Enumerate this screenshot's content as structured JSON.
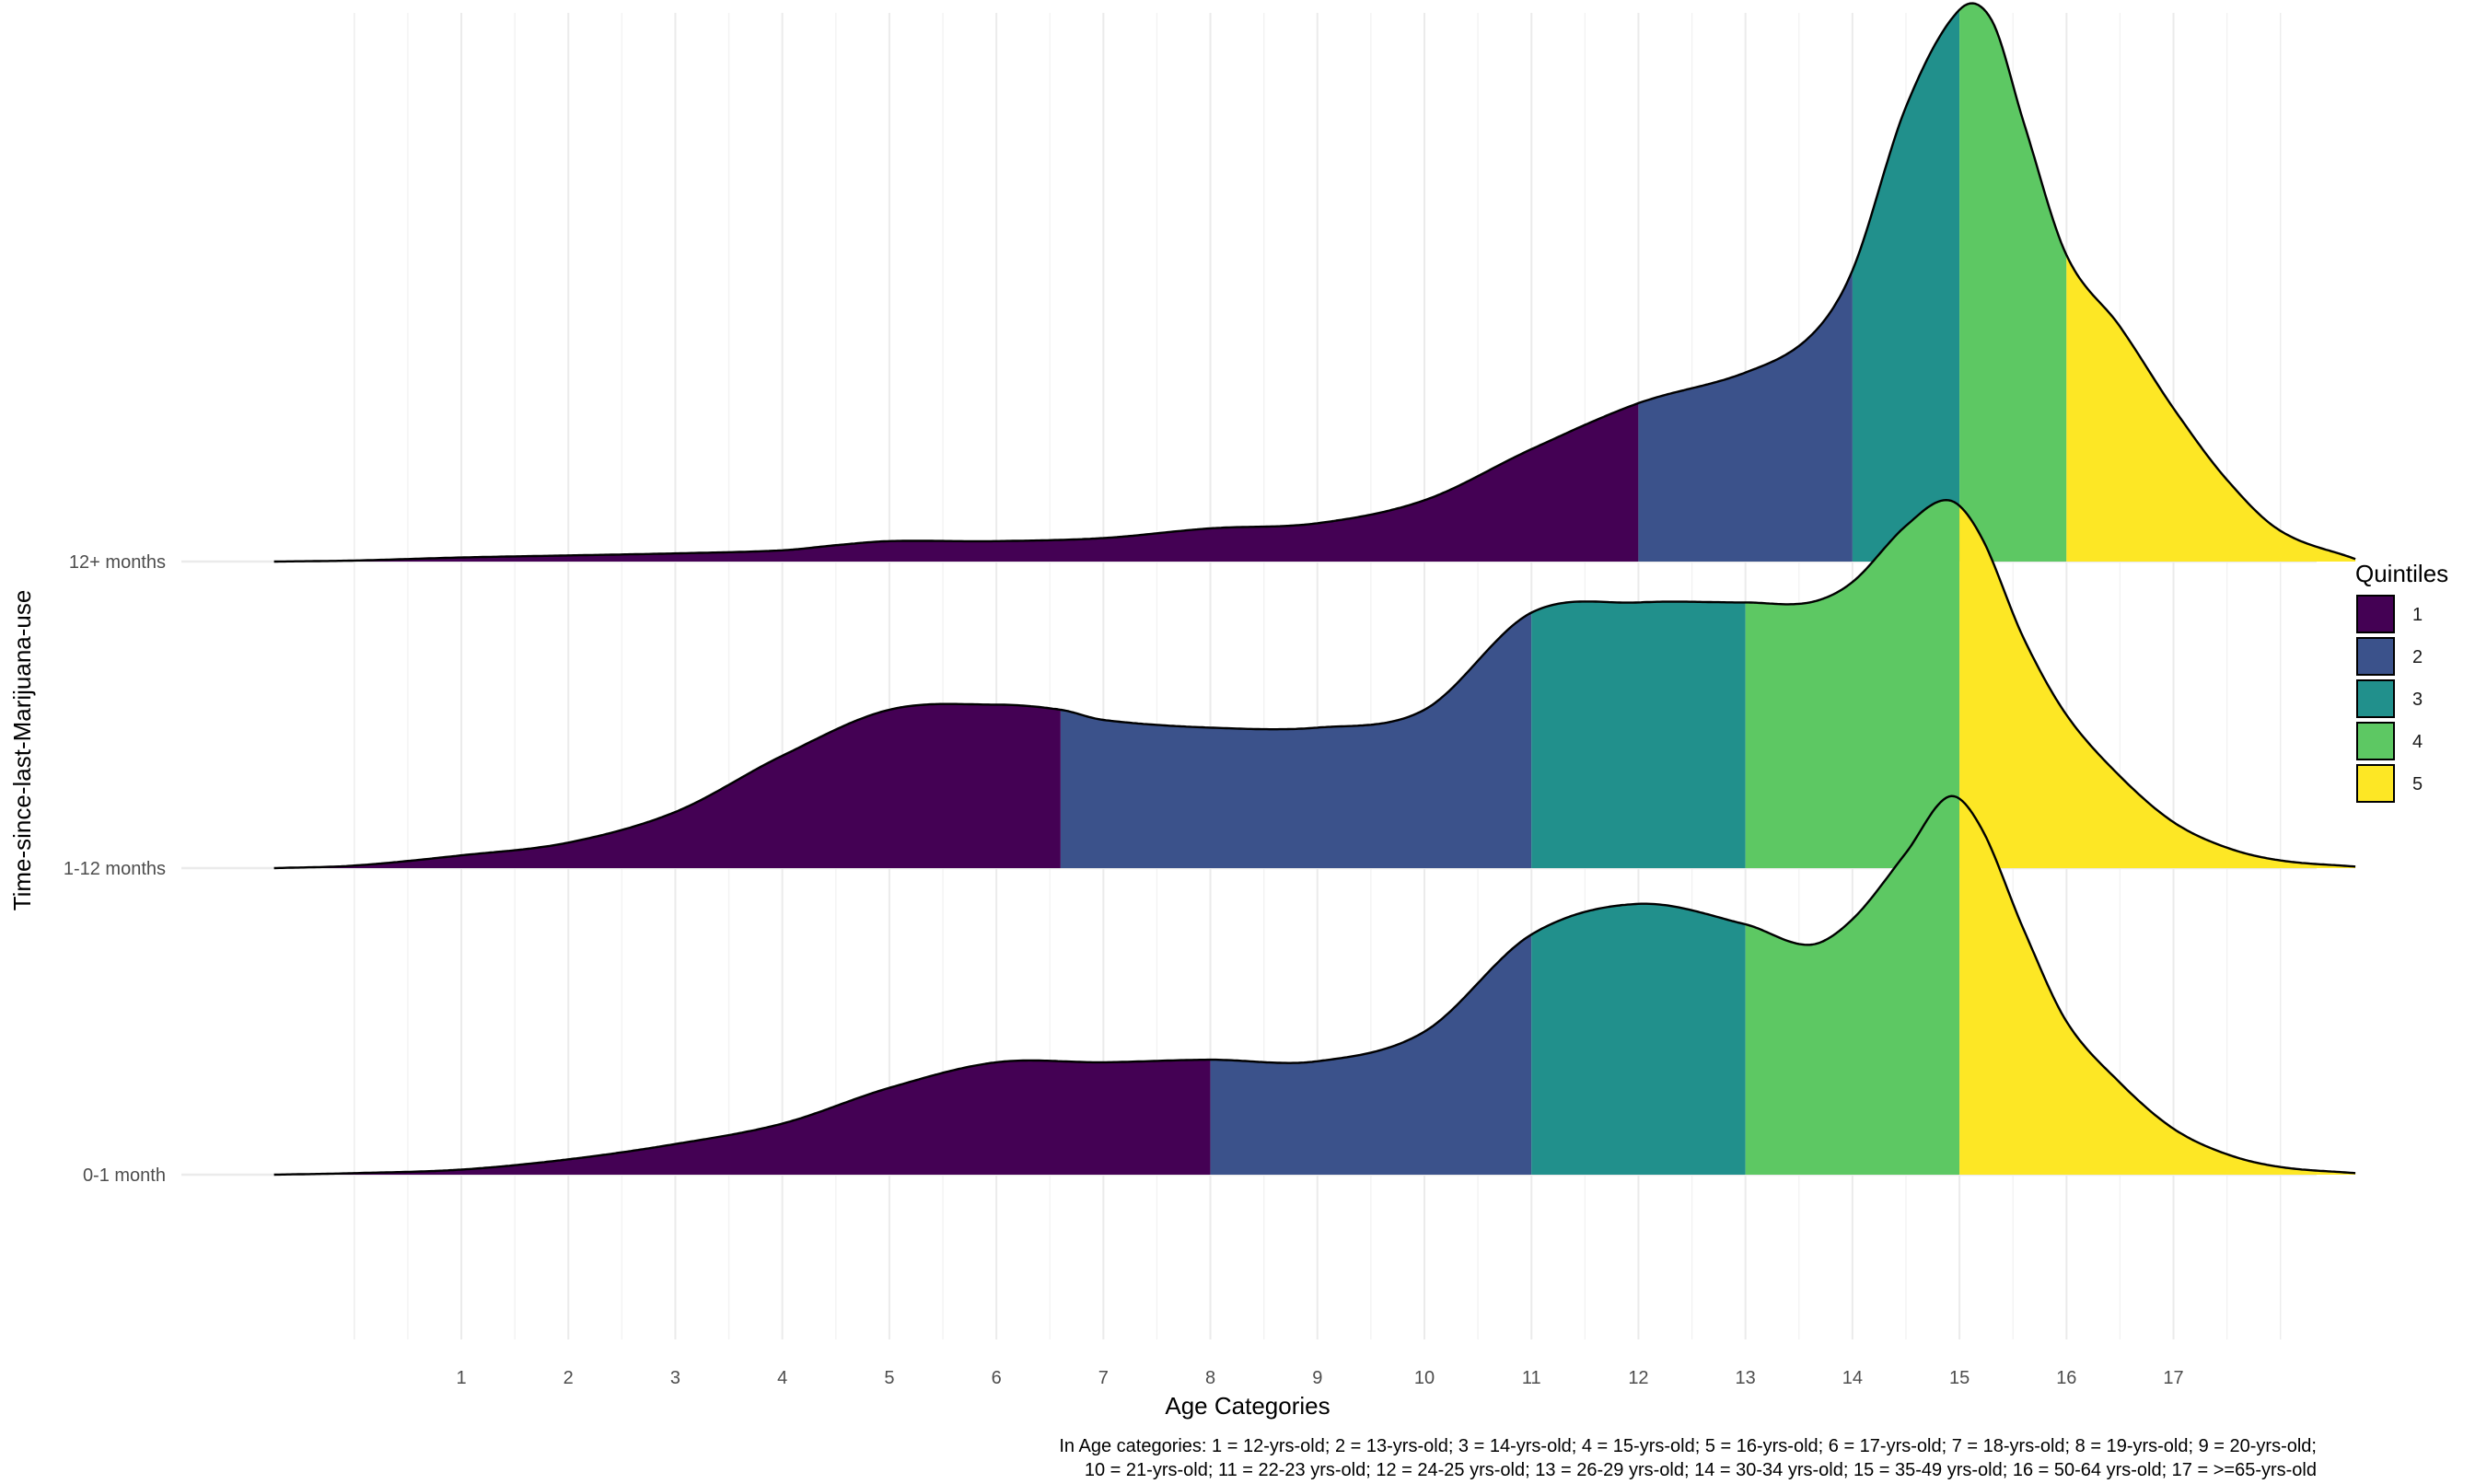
{
  "chart_data": {
    "type": "ridgeline",
    "xlabel": "Age Categories",
    "ylabel": "Time-since-last-Marijuana-use",
    "x_ticks": [
      1,
      2,
      3,
      4,
      5,
      6,
      7,
      8,
      9,
      10,
      11,
      12,
      13,
      14,
      15,
      16,
      17
    ],
    "xlim": [
      -0.05,
      18.2
    ],
    "grid": true,
    "legend": {
      "title": "Quintiles",
      "placement": "right",
      "entries": [
        {
          "label": "1",
          "color": "#440154"
        },
        {
          "label": "2",
          "color": "#3b528b"
        },
        {
          "label": "3",
          "color": "#21908c"
        },
        {
          "label": "4",
          "color": "#5dc863"
        },
        {
          "label": "5",
          "color": "#fde725"
        }
      ]
    },
    "caption": [
      "In Age categories: 1 = 12-yrs-old; 2 = 13-yrs-old; 3 = 14-yrs-old; 4 = 15-yrs-old; 5 = 16-yrs-old; 6 = 17-yrs-old; 7 = 18-yrs-old; 8 = 19-yrs-old; 9 = 20-yrs-old;",
      "10 = 21-yrs-old; 11 = 22-23 yrs-old; 12 = 24-25 yrs-old; 13 = 26-29 yrs-old; 14 = 30-34 yrs-old; 15 = 35-49 yrs-old; 16 = 50-64 yrs-old; 17 = >=65-yrs-old"
    ],
    "series": [
      {
        "name": "0-1 month",
        "quintile_breaks": [
          8,
          11,
          13,
          15
        ],
        "density": [
          [
            -0.75,
            0
          ],
          [
            0,
            0.003
          ],
          [
            1,
            0.01
          ],
          [
            2,
            0.03
          ],
          [
            3,
            0.06
          ],
          [
            4,
            0.1
          ],
          [
            5,
            0.17
          ],
          [
            6,
            0.22
          ],
          [
            7,
            0.22
          ],
          [
            8,
            0.225
          ],
          [
            9,
            0.222
          ],
          [
            10,
            0.28
          ],
          [
            11,
            0.47
          ],
          [
            12,
            0.53
          ],
          [
            13,
            0.49
          ],
          [
            13.6,
            0.45
          ],
          [
            14,
            0.5
          ],
          [
            14.5,
            0.63
          ],
          [
            14.9,
            0.74
          ],
          [
            15.2,
            0.68
          ],
          [
            15.6,
            0.48
          ],
          [
            16,
            0.3
          ],
          [
            16.5,
            0.18
          ],
          [
            17,
            0.09
          ],
          [
            17.5,
            0.04
          ],
          [
            18,
            0.015
          ],
          [
            18.7,
            0.003
          ]
        ]
      },
      {
        "name": "1-12 months",
        "quintile_breaks": [
          6.6,
          11,
          13,
          15
        ],
        "density": [
          [
            -0.75,
            0
          ],
          [
            0,
            0.005
          ],
          [
            1,
            0.025
          ],
          [
            2,
            0.05
          ],
          [
            3,
            0.11
          ],
          [
            4,
            0.22
          ],
          [
            5,
            0.31
          ],
          [
            6,
            0.32
          ],
          [
            6.6,
            0.31
          ],
          [
            7,
            0.29
          ],
          [
            8,
            0.275
          ],
          [
            9,
            0.275
          ],
          [
            10,
            0.31
          ],
          [
            11,
            0.5
          ],
          [
            12,
            0.52
          ],
          [
            13,
            0.52
          ],
          [
            13.6,
            0.52
          ],
          [
            14,
            0.56
          ],
          [
            14.5,
            0.67
          ],
          [
            14.9,
            0.72
          ],
          [
            15.2,
            0.65
          ],
          [
            15.6,
            0.45
          ],
          [
            16,
            0.3
          ],
          [
            16.5,
            0.18
          ],
          [
            17,
            0.09
          ],
          [
            17.5,
            0.04
          ],
          [
            18,
            0.015
          ],
          [
            18.7,
            0.003
          ]
        ]
      },
      {
        "name": "12+ months",
        "quintile_breaks": [
          12,
          14,
          15,
          16
        ],
        "density": [
          [
            -0.75,
            0
          ],
          [
            0,
            0.002
          ],
          [
            1,
            0.008
          ],
          [
            2,
            0.012
          ],
          [
            3,
            0.016
          ],
          [
            4,
            0.022
          ],
          [
            4.5,
            0.032
          ],
          [
            5,
            0.04
          ],
          [
            6,
            0.04
          ],
          [
            7,
            0.046
          ],
          [
            8,
            0.065
          ],
          [
            9,
            0.075
          ],
          [
            10,
            0.12
          ],
          [
            11,
            0.22
          ],
          [
            12,
            0.31
          ],
          [
            13,
            0.37
          ],
          [
            13.6,
            0.44
          ],
          [
            14,
            0.57
          ],
          [
            14.5,
            0.89
          ],
          [
            15,
            1.08
          ],
          [
            15.3,
            1.06
          ],
          [
            15.6,
            0.86
          ],
          [
            16,
            0.6
          ],
          [
            16.5,
            0.46
          ],
          [
            17,
            0.3
          ],
          [
            17.5,
            0.16
          ],
          [
            18,
            0.06
          ],
          [
            18.7,
            0.005
          ]
        ]
      }
    ]
  }
}
